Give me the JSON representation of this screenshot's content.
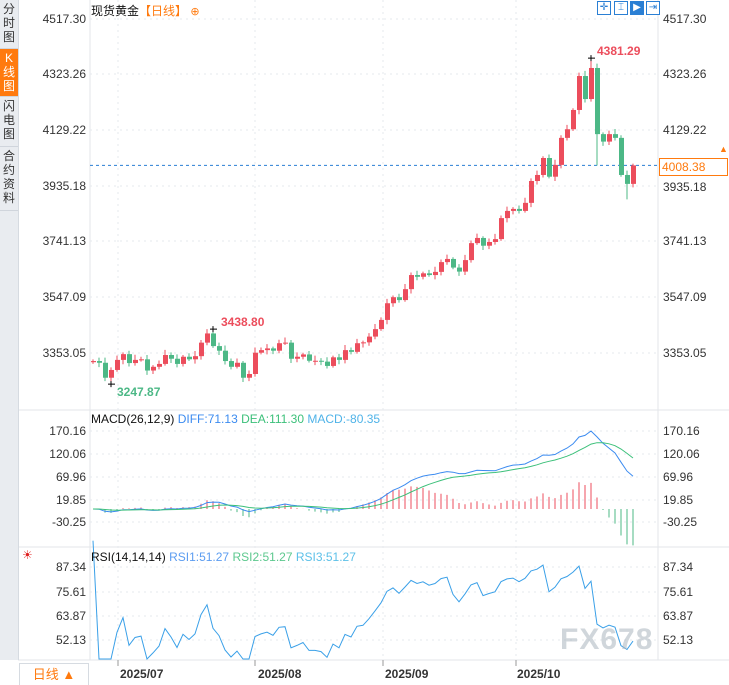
{
  "sidebar": {
    "items": [
      {
        "label": "分时图",
        "active": false
      },
      {
        "label": "K线图",
        "active": true
      },
      {
        "label": "闪电图",
        "active": false
      },
      {
        "label": "合约资料",
        "active": false
      }
    ]
  },
  "header": {
    "title": "现货黄金",
    "period": "【日线】",
    "add_icon": "circle-plus-icon"
  },
  "toolbar": {
    "icons": [
      "crosshair-icon",
      "range-icon",
      "play-icon",
      "exit-icon"
    ]
  },
  "colors": {
    "up": "#ec4d5c",
    "down": "#4cb886",
    "accent": "#ff7a0e",
    "diff": "#3b8bf0",
    "dea": "#3cc07a",
    "rsi": "#3aa0e8",
    "last_price_line": "#2a7fd4"
  },
  "price_axis": {
    "ticks": [
      "4517.30",
      "4323.26",
      "4129.22",
      "3935.18",
      "3741.13",
      "3547.09",
      "3353.05"
    ]
  },
  "last_price": "4008.38",
  "markers": {
    "high": "4381.29",
    "low": "3247.87",
    "local_high": "3438.80"
  },
  "chart_data": [
    {
      "type": "candlestick",
      "title": "现货黄金",
      "ylim": [
        3247.87,
        4517.3
      ],
      "first_open": 3324,
      "close": [
        3328,
        3322,
        3270,
        3297,
        3332,
        3352,
        3321,
        3332,
        3334,
        3295,
        3308,
        3318,
        3349,
        3336,
        3318,
        3343,
        3334,
        3345,
        3392,
        3424,
        3380,
        3364,
        3328,
        3308,
        3322,
        3270,
        3283,
        3357,
        3366,
        3372,
        3364,
        3390,
        3392,
        3336,
        3343,
        3351,
        3329,
        3329,
        3326,
        3311,
        3341,
        3332,
        3366,
        3360,
        3390,
        3393,
        3413,
        3439,
        3471,
        3529,
        3550,
        3540,
        3578,
        3627,
        3621,
        3633,
        3627,
        3638,
        3672,
        3683,
        3653,
        3639,
        3679,
        3738,
        3756,
        3729,
        3742,
        3752,
        3825,
        3850,
        3857,
        3850,
        3878,
        3954,
        3975,
        4034,
        3969,
        4010,
        4104,
        4134,
        4201,
        4319,
        4239,
        4347,
        4117,
        4091,
        4117,
        4104,
        3975,
        3944,
        4008.38
      ],
      "x_ticks": [
        "2025/07",
        "2025/08",
        "2025/09",
        "2025/10"
      ]
    },
    {
      "type": "line",
      "title": "MACD(26,12,9)",
      "series": [
        {
          "name": "DIFF",
          "value": "71.13"
        },
        {
          "name": "DEA",
          "value": "111.30"
        },
        {
          "name": "MACD",
          "value": "-80.35"
        }
      ],
      "y_ticks": [
        "170.16",
        "120.06",
        "69.96",
        "19.85",
        "-30.25"
      ]
    },
    {
      "type": "line",
      "title": "RSI(14,14,14)",
      "series": [
        {
          "name": "RSI1",
          "value": "51.27"
        },
        {
          "name": "RSI2",
          "value": "51.27"
        },
        {
          "name": "RSI3",
          "value": "51.27"
        }
      ],
      "y_ticks": [
        "87.34",
        "75.61",
        "63.87",
        "52.13"
      ]
    }
  ],
  "macd_legend": {
    "title": "MACD(26,12,9)",
    "diff": "DIFF:71.13",
    "dea": "DEA:111.30",
    "macd": "MACD:-80.35"
  },
  "rsi_legend": {
    "title": "RSI(14,14,14)",
    "rsi1": "RSI1:51.27",
    "rsi2": "RSI2:51.27",
    "rsi3": "RSI3:51.27"
  },
  "period_selector": {
    "label": "日线 ▲"
  },
  "watermark": "FX678"
}
